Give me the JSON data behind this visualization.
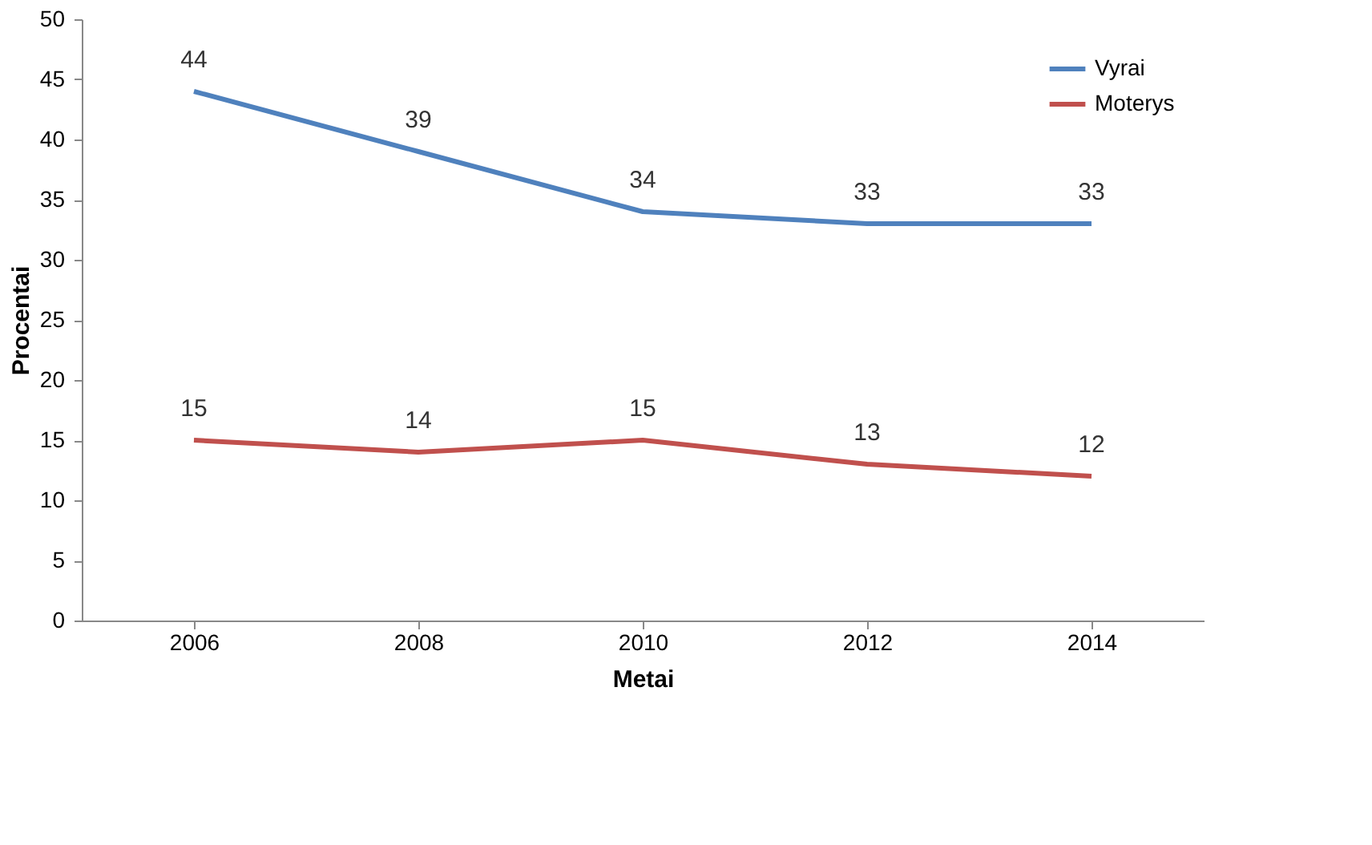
{
  "chart_data": {
    "type": "line",
    "xlabel": "Metai",
    "ylabel": "Procentai",
    "categories": [
      "2006",
      "2008",
      "2010",
      "2012",
      "2014"
    ],
    "series": [
      {
        "name": "Vyrai",
        "color": "#4f81bd",
        "values": [
          44,
          39,
          34,
          33,
          33
        ]
      },
      {
        "name": "Moterys",
        "color": "#c0504d",
        "values": [
          15,
          14,
          15,
          13,
          12
        ]
      }
    ],
    "ylim": [
      0,
      50
    ],
    "yticks": [
      0,
      5,
      10,
      15,
      20,
      25,
      30,
      35,
      40,
      45,
      50
    ],
    "grid": false,
    "legend": "top right",
    "data_labels": true,
    "marker": "none",
    "line_style": "solid"
  }
}
